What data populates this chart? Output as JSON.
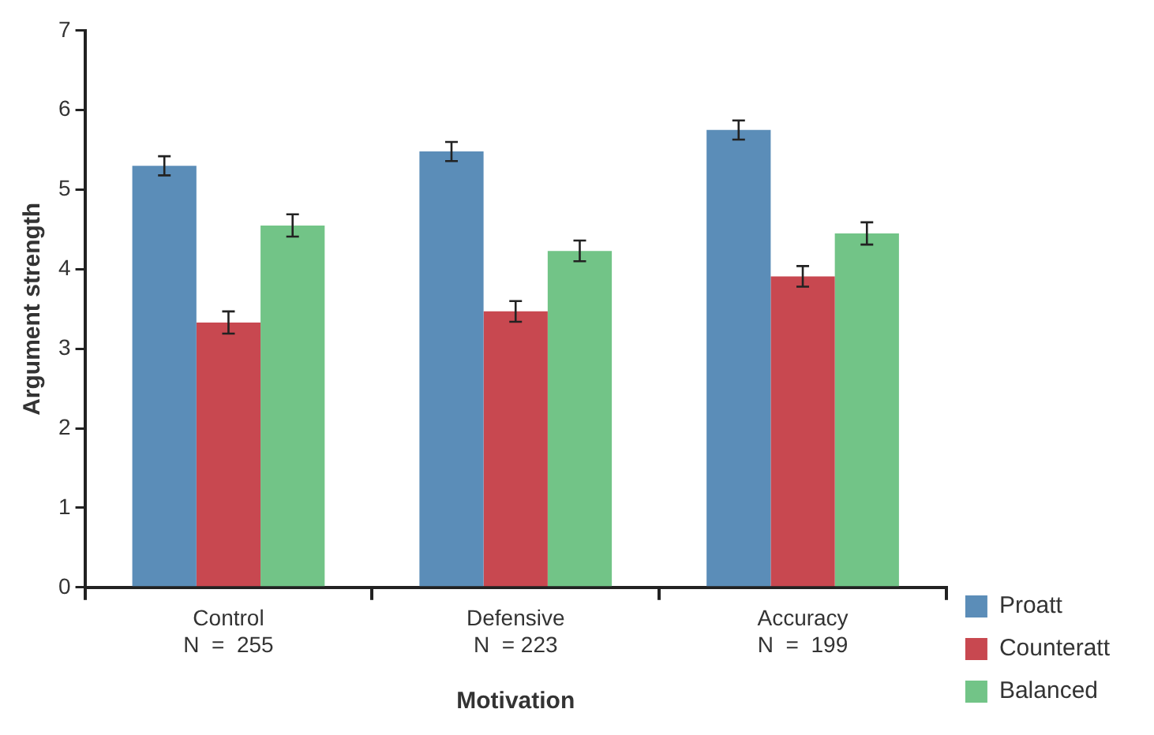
{
  "chart_data": {
    "type": "bar",
    "xlabel": "Motivation",
    "ylabel": "Argument strength",
    "categories": [
      "Control\nN  =  255",
      "Defensive\nN  = 223",
      "Accuracy\nN  =  199"
    ],
    "series": [
      {
        "name": "Proatt",
        "color": "#5b8db8",
        "values": [
          5.3,
          5.48,
          5.75
        ],
        "errors": [
          0.12,
          0.12,
          0.12
        ]
      },
      {
        "name": "Counteratt",
        "color": "#c84850",
        "values": [
          3.33,
          3.47,
          3.91
        ],
        "errors": [
          0.14,
          0.13,
          0.13
        ]
      },
      {
        "name": "Balanced",
        "color": "#72c487",
        "values": [
          4.55,
          4.23,
          4.45
        ],
        "errors": [
          0.14,
          0.13,
          0.14
        ]
      }
    ],
    "ylim": [
      0,
      7
    ],
    "yticks": [
      0,
      1,
      2,
      3,
      4,
      5,
      6,
      7
    ],
    "grid": false,
    "legend": "right"
  }
}
